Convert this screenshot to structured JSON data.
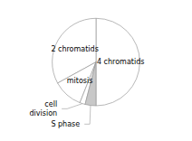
{
  "chart_data": {
    "type": "pie",
    "categories": [
      "4 chromatids",
      "2 chromatids",
      "mitosis",
      "cell\ndivision",
      "S phase"
    ],
    "values": [
      50,
      33,
      11,
      2,
      4
    ],
    "colors": [
      "#ffffff",
      "#ffffff",
      "#ffffff",
      "#ffffff",
      "#c8c8c8"
    ]
  }
}
